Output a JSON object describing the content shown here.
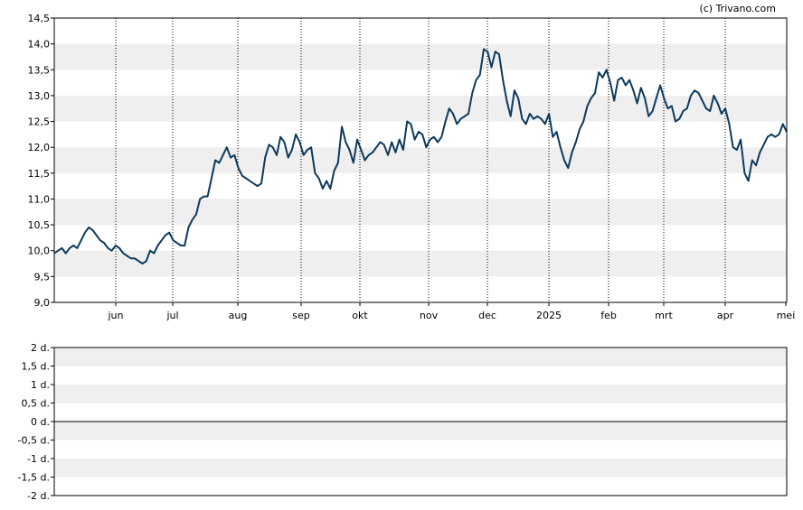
{
  "credit": "(c) Trivano.com",
  "colors": {
    "line": "#0d3a5c",
    "band": "#efefef",
    "axis": "#000000",
    "grid": "#000000"
  },
  "chart_data": [
    {
      "type": "line",
      "title": "",
      "xlabel": "",
      "ylabel": "",
      "ylim": [
        9.0,
        14.5
      ],
      "y_ticks": [
        "9,0",
        "9,5",
        "10,0",
        "10,5",
        "11,0",
        "11,5",
        "12,0",
        "12,5",
        "13,0",
        "13,5",
        "14,0",
        "14,5"
      ],
      "x_ticks": [
        "jun",
        "jul",
        "aug",
        "sep",
        "okt",
        "nov",
        "dec",
        "2025",
        "feb",
        "mrt",
        "apr",
        "mei"
      ],
      "grid": "vertical dotted at month starts, alternating horizontal bands",
      "series": [
        {
          "values": [
            9.95,
            10.0,
            10.05,
            9.95,
            10.05,
            10.1,
            10.05,
            10.2,
            10.35,
            10.45,
            10.4,
            10.3,
            10.2,
            10.15,
            10.05,
            10.0,
            10.1,
            10.05,
            9.95,
            9.9,
            9.85,
            9.85,
            9.8,
            9.75,
            9.8,
            10.0,
            9.95,
            10.1,
            10.2,
            10.3,
            10.35,
            10.2,
            10.15,
            10.1,
            10.1,
            10.45,
            10.6,
            10.7,
            11.0,
            11.05,
            11.05,
            11.4,
            11.75,
            11.7,
            11.85,
            12.0,
            11.8,
            11.85,
            11.6,
            11.45,
            11.4,
            11.35,
            11.3,
            11.25,
            11.3,
            11.8,
            12.05,
            12.0,
            11.85,
            12.2,
            12.1,
            11.8,
            11.95,
            12.25,
            12.1,
            11.85,
            11.95,
            12.0,
            11.5,
            11.4,
            11.2,
            11.35,
            11.2,
            11.55,
            11.7,
            12.4,
            12.1,
            11.95,
            11.7,
            12.15,
            11.95,
            11.75,
            11.85,
            11.9,
            12.0,
            12.1,
            12.05,
            11.85,
            12.1,
            11.9,
            12.15,
            11.95,
            12.5,
            12.45,
            12.15,
            12.3,
            12.25,
            12.0,
            12.15,
            12.2,
            12.1,
            12.2,
            12.5,
            12.75,
            12.65,
            12.45,
            12.55,
            12.6,
            12.65,
            13.05,
            13.3,
            13.4,
            13.9,
            13.85,
            13.55,
            13.85,
            13.8,
            13.3,
            12.9,
            12.6,
            13.1,
            12.95,
            12.55,
            12.45,
            12.65,
            12.55,
            12.6,
            12.55,
            12.45,
            12.65,
            12.2,
            12.3,
            12.0,
            11.75,
            11.6,
            11.9,
            12.1,
            12.35,
            12.5,
            12.8,
            12.95,
            13.05,
            13.45,
            13.35,
            13.5,
            13.25,
            12.9,
            13.3,
            13.35,
            13.2,
            13.3,
            13.1,
            12.85,
            13.15,
            12.95,
            12.6,
            12.7,
            12.95,
            13.2,
            12.95,
            12.75,
            12.8,
            12.5,
            12.55,
            12.7,
            12.75,
            13.0,
            13.1,
            13.05,
            12.9,
            12.75,
            12.7,
            13.0,
            12.85,
            12.65,
            12.75,
            12.45,
            12.0,
            11.95,
            12.15,
            11.5,
            11.35,
            11.75,
            11.65,
            11.9,
            12.05,
            12.2,
            12.25,
            12.2,
            12.25,
            12.45,
            12.3
          ],
          "color": "#0d3a5c"
        }
      ]
    },
    {
      "type": "line",
      "title": "",
      "xlabel": "",
      "ylabel": "",
      "ylim": [
        -2,
        2
      ],
      "y_ticks": [
        "2 d.",
        "1,5 d.",
        "1 d.",
        "0,5 d.",
        "0 d.",
        "-0,5 d.",
        "-1 d.",
        "-1,5 d.",
        "-2 d."
      ],
      "grid": "alternating horizontal bands, zero line",
      "series": []
    }
  ]
}
